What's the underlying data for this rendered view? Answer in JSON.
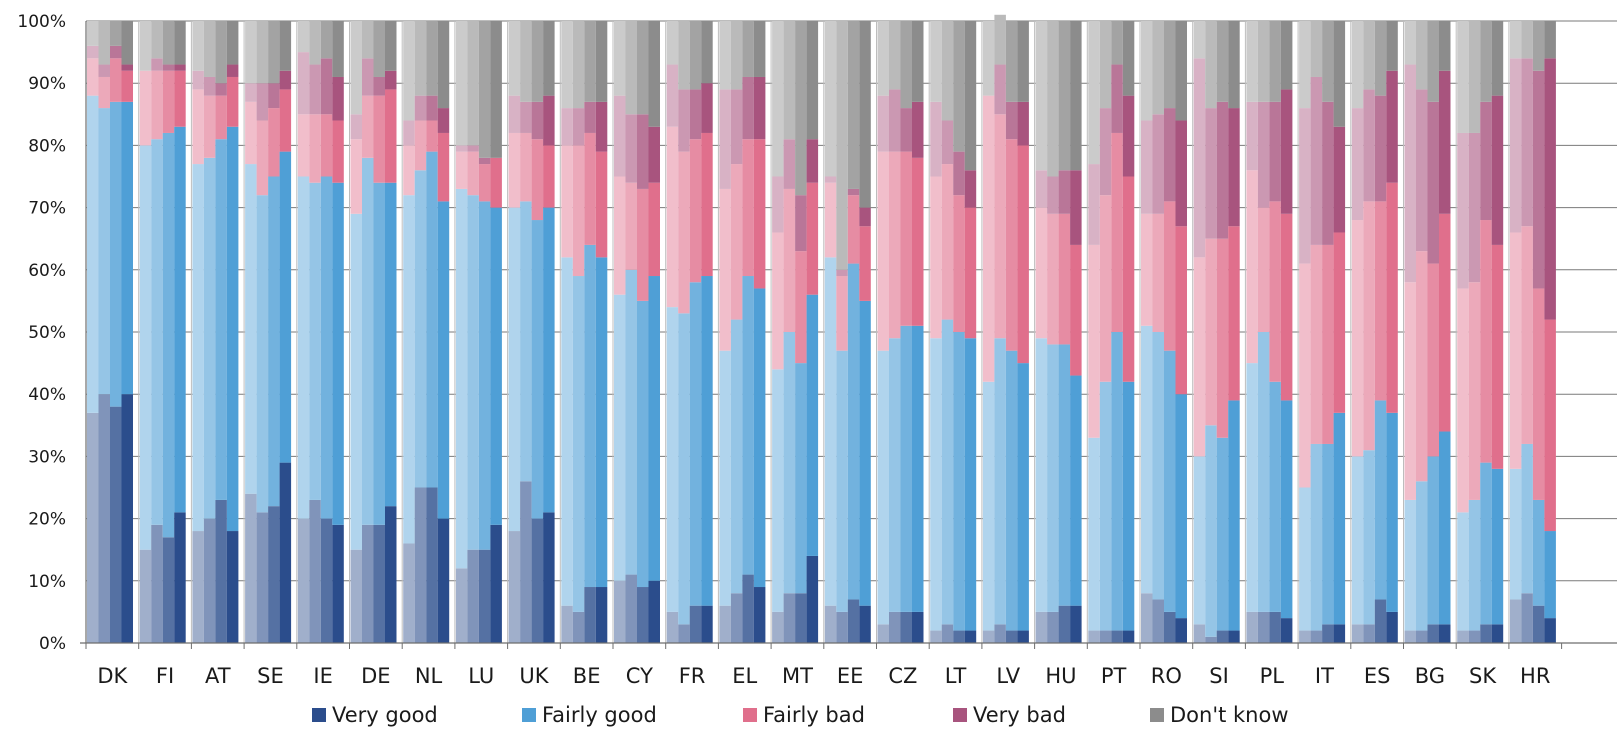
{
  "chart_data": {
    "type": "bar",
    "stacked": true,
    "title": "",
    "xlabel": "",
    "ylabel": "",
    "ylim": [
      0,
      100
    ],
    "yticks": [
      "0%",
      "10%",
      "20%",
      "30%",
      "40%",
      "50%",
      "60%",
      "70%",
      "80%",
      "90%",
      "100%"
    ],
    "categories": [
      "DK",
      "FI",
      "AT",
      "SE",
      "IE",
      "DE",
      "NL",
      "LU",
      "UK",
      "BE",
      "CY",
      "FR",
      "EL",
      "MT",
      "EE",
      "CZ",
      "LT",
      "LV",
      "HU",
      "PT",
      "RO",
      "SI",
      "PL",
      "IT",
      "ES",
      "BG",
      "SK",
      "HR"
    ],
    "bars_per_category": 4,
    "series": [
      {
        "name": "Very good",
        "color": "#2b4d8c",
        "values": [
          [
            37,
            40,
            38,
            40
          ],
          [
            15,
            19,
            17,
            21
          ],
          [
            18,
            20,
            23,
            18
          ],
          [
            24,
            21,
            22,
            29
          ],
          [
            20,
            23,
            20,
            19
          ],
          [
            15,
            19,
            19,
            22
          ],
          [
            16,
            25,
            25,
            20
          ],
          [
            12,
            15,
            15,
            19
          ],
          [
            18,
            26,
            20,
            21
          ],
          [
            6,
            5,
            9,
            9
          ],
          [
            10,
            11,
            9,
            10
          ],
          [
            5,
            3,
            6,
            6
          ],
          [
            6,
            8,
            11,
            9
          ],
          [
            5,
            8,
            8,
            14
          ],
          [
            6,
            5,
            7,
            6
          ],
          [
            3,
            5,
            5,
            5
          ],
          [
            2,
            3,
            2,
            2
          ],
          [
            2,
            3,
            2,
            2
          ],
          [
            5,
            5,
            6,
            6
          ],
          [
            2,
            2,
            2,
            2
          ],
          [
            8,
            7,
            5,
            4
          ],
          [
            3,
            1,
            2,
            2
          ],
          [
            5,
            5,
            5,
            4
          ],
          [
            2,
            2,
            3,
            3
          ],
          [
            3,
            3,
            7,
            5
          ],
          [
            2,
            2,
            3,
            3
          ],
          [
            2,
            2,
            3,
            3
          ],
          [
            7,
            8,
            6,
            4
          ]
        ]
      },
      {
        "name": "Fairly good",
        "color": "#4f9fd6",
        "values": [
          [
            51,
            46,
            49,
            47
          ],
          [
            65,
            62,
            65,
            62
          ],
          [
            59,
            58,
            58,
            65
          ],
          [
            53,
            51,
            53,
            50
          ],
          [
            55,
            51,
            55,
            55
          ],
          [
            54,
            59,
            55,
            52
          ],
          [
            56,
            51,
            54,
            51
          ],
          [
            61,
            57,
            56,
            51
          ],
          [
            52,
            45,
            48,
            49
          ],
          [
            56,
            54,
            55,
            53
          ],
          [
            46,
            49,
            46,
            49
          ],
          [
            49,
            50,
            52,
            53
          ],
          [
            41,
            44,
            48,
            48
          ],
          [
            39,
            42,
            37,
            42
          ],
          [
            56,
            42,
            54,
            49
          ],
          [
            44,
            44,
            46,
            46
          ],
          [
            47,
            49,
            48,
            47
          ],
          [
            40,
            46,
            45,
            43
          ],
          [
            44,
            43,
            42,
            37
          ],
          [
            31,
            40,
            48,
            40
          ],
          [
            43,
            43,
            42,
            36
          ],
          [
            27,
            34,
            31,
            37
          ],
          [
            40,
            45,
            37,
            35
          ],
          [
            23,
            30,
            29,
            34
          ],
          [
            27,
            28,
            32,
            32
          ],
          [
            21,
            24,
            27,
            31
          ],
          [
            19,
            21,
            26,
            25
          ],
          [
            21,
            24,
            17,
            14
          ]
        ]
      },
      {
        "name": "Fairly bad",
        "color": "#e06f8c",
        "values": [
          [
            6,
            5,
            7,
            5
          ],
          [
            12,
            11,
            10,
            9
          ],
          [
            12,
            10,
            7,
            8
          ],
          [
            10,
            12,
            11,
            10
          ],
          [
            10,
            11,
            10,
            10
          ],
          [
            12,
            10,
            14,
            15
          ],
          [
            8,
            8,
            5,
            11
          ],
          [
            6,
            7,
            6,
            8
          ],
          [
            12,
            11,
            13,
            10
          ],
          [
            18,
            21,
            18,
            17
          ],
          [
            19,
            14,
            18,
            15
          ],
          [
            29,
            26,
            23,
            23
          ],
          [
            26,
            25,
            22,
            24
          ],
          [
            22,
            23,
            18,
            18
          ],
          [
            12,
            12,
            11,
            12
          ],
          [
            32,
            30,
            28,
            27
          ],
          [
            26,
            25,
            22,
            21
          ],
          [
            46,
            36,
            34,
            35
          ],
          [
            21,
            21,
            21,
            21
          ],
          [
            31,
            30,
            32,
            33
          ],
          [
            18,
            19,
            24,
            27
          ],
          [
            32,
            30,
            32,
            28
          ],
          [
            31,
            20,
            29,
            30
          ],
          [
            36,
            32,
            32,
            29
          ],
          [
            38,
            40,
            32,
            37
          ],
          [
            35,
            37,
            31,
            35
          ],
          [
            36,
            35,
            39,
            36
          ],
          [
            38,
            35,
            34,
            34
          ]
        ]
      },
      {
        "name": "Very bad",
        "color": "#a8547e",
        "values": [
          [
            2,
            2,
            2,
            1
          ],
          [
            0,
            2,
            1,
            1
          ],
          [
            3,
            3,
            2,
            2
          ],
          [
            3,
            6,
            4,
            3
          ],
          [
            10,
            8,
            9,
            7
          ],
          [
            4,
            6,
            3,
            3
          ],
          [
            4,
            4,
            4,
            4
          ],
          [
            1,
            1,
            1,
            0
          ],
          [
            6,
            5,
            6,
            8
          ],
          [
            6,
            6,
            5,
            8
          ],
          [
            13,
            11,
            12,
            9
          ],
          [
            10,
            10,
            8,
            8
          ],
          [
            16,
            12,
            10,
            10
          ],
          [
            9,
            8,
            9,
            7
          ],
          [
            1,
            1,
            1,
            3
          ],
          [
            9,
            10,
            7,
            9
          ],
          [
            12,
            7,
            7,
            6
          ],
          [
            0,
            8,
            6,
            7
          ],
          [
            6,
            6,
            7,
            12
          ],
          [
            13,
            14,
            11,
            13
          ],
          [
            15,
            16,
            15,
            17
          ],
          [
            32,
            21,
            22,
            19
          ],
          [
            11,
            17,
            16,
            20
          ],
          [
            25,
            27,
            23,
            17
          ],
          [
            18,
            18,
            17,
            18
          ],
          [
            35,
            26,
            26,
            23
          ],
          [
            25,
            24,
            19,
            24
          ],
          [
            28,
            27,
            35,
            42
          ]
        ]
      },
      {
        "name": "Don't know",
        "color": "#8c8c8c",
        "values": [
          [
            4,
            7,
            4,
            7
          ],
          [
            8,
            6,
            7,
            7
          ],
          [
            8,
            9,
            10,
            7
          ],
          [
            10,
            10,
            10,
            8
          ],
          [
            5,
            7,
            6,
            9
          ],
          [
            15,
            6,
            9,
            8
          ],
          [
            16,
            12,
            12,
            14
          ],
          [
            20,
            20,
            22,
            22
          ],
          [
            12,
            13,
            13,
            12
          ],
          [
            14,
            14,
            13,
            13
          ],
          [
            12,
            15,
            15,
            17
          ],
          [
            7,
            11,
            11,
            10
          ],
          [
            11,
            11,
            9,
            9
          ],
          [
            25,
            19,
            28,
            19
          ],
          [
            25,
            40,
            27,
            30
          ],
          [
            12,
            11,
            14,
            13
          ],
          [
            13,
            16,
            21,
            24
          ],
          [
            12,
            8,
            13,
            13
          ],
          [
            24,
            25,
            24,
            24
          ],
          [
            23,
            14,
            7,
            12
          ],
          [
            16,
            15,
            14,
            16
          ],
          [
            6,
            14,
            13,
            14
          ],
          [
            13,
            13,
            13,
            11
          ],
          [
            14,
            9,
            13,
            17
          ],
          [
            14,
            11,
            12,
            8
          ],
          [
            7,
            11,
            13,
            8
          ],
          [
            18,
            18,
            13,
            12
          ],
          [
            6,
            6,
            8,
            6
          ]
        ]
      }
    ],
    "legend": {
      "placement": "bottom",
      "items": [
        "Very good",
        "Fairly good",
        "Fairly bad",
        "Very bad",
        "Don't know"
      ]
    },
    "group_separators_after": [
      "DK",
      "FI",
      "AT",
      "SE",
      "IE",
      "DE",
      "NL",
      "LU",
      "UK",
      "BE",
      "CY",
      "FR",
      "EL",
      "MT",
      "EE",
      "CZ",
      "LT",
      "LV",
      "HU",
      "PT",
      "RO",
      "SI",
      "PL",
      "IT",
      "ES",
      "BG",
      "SK"
    ],
    "grid": true,
    "shading": "earlier bars drawn in lighter tints, most recent bar in full colour"
  }
}
